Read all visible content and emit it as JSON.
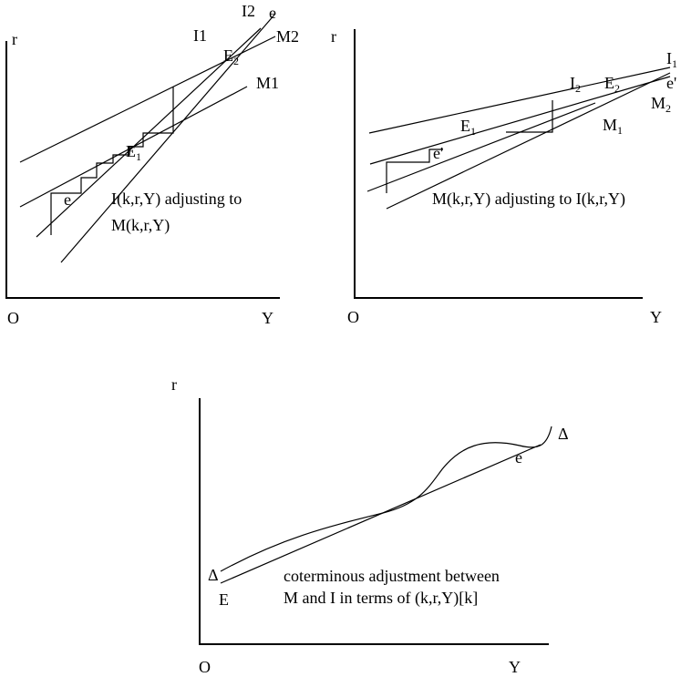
{
  "panels": [
    {
      "id": "top-left",
      "axis_y": "r",
      "axis_x": "Y",
      "origin": "O",
      "curves": {
        "i1": "I1",
        "i2": "I2",
        "e": "e",
        "m2": "M2",
        "m1": "M1"
      },
      "points": {
        "e2_main": "E",
        "e2_sub": "2",
        "e1_main": "E",
        "e1_sub": "1",
        "e_low": "e"
      },
      "caption_line1": "I(k,r,Y) adjusting to",
      "caption_line2": "M(k,r,Y)"
    },
    {
      "id": "top-right",
      "axis_y": "r",
      "axis_x": "Y",
      "origin": "O",
      "curves": {
        "i1_main": "I",
        "i1_sub": "1",
        "i2_main": "I",
        "i2_sub": "2",
        "e_prime": "e'",
        "m2_main": "M",
        "m2_sub": "2",
        "m1_main": "M",
        "m1_sub": "1"
      },
      "points": {
        "e2_main": "E",
        "e2_sub": "2",
        "e1_main": "E",
        "e1_sub": "1",
        "e_prime_low": "e'"
      },
      "caption": "M(k,r,Y) adjusting to I(k,r,Y)"
    },
    {
      "id": "bottom",
      "axis_y": "r",
      "axis_x": "Y",
      "origin": "O",
      "labels": {
        "delta_top": "Δ",
        "delta_bottom": "Δ",
        "e": "e",
        "E": "E"
      },
      "caption_line1": "coterminous adjustment between",
      "caption_line2": "M and I in terms of (k,r,Y)[k]"
    }
  ]
}
